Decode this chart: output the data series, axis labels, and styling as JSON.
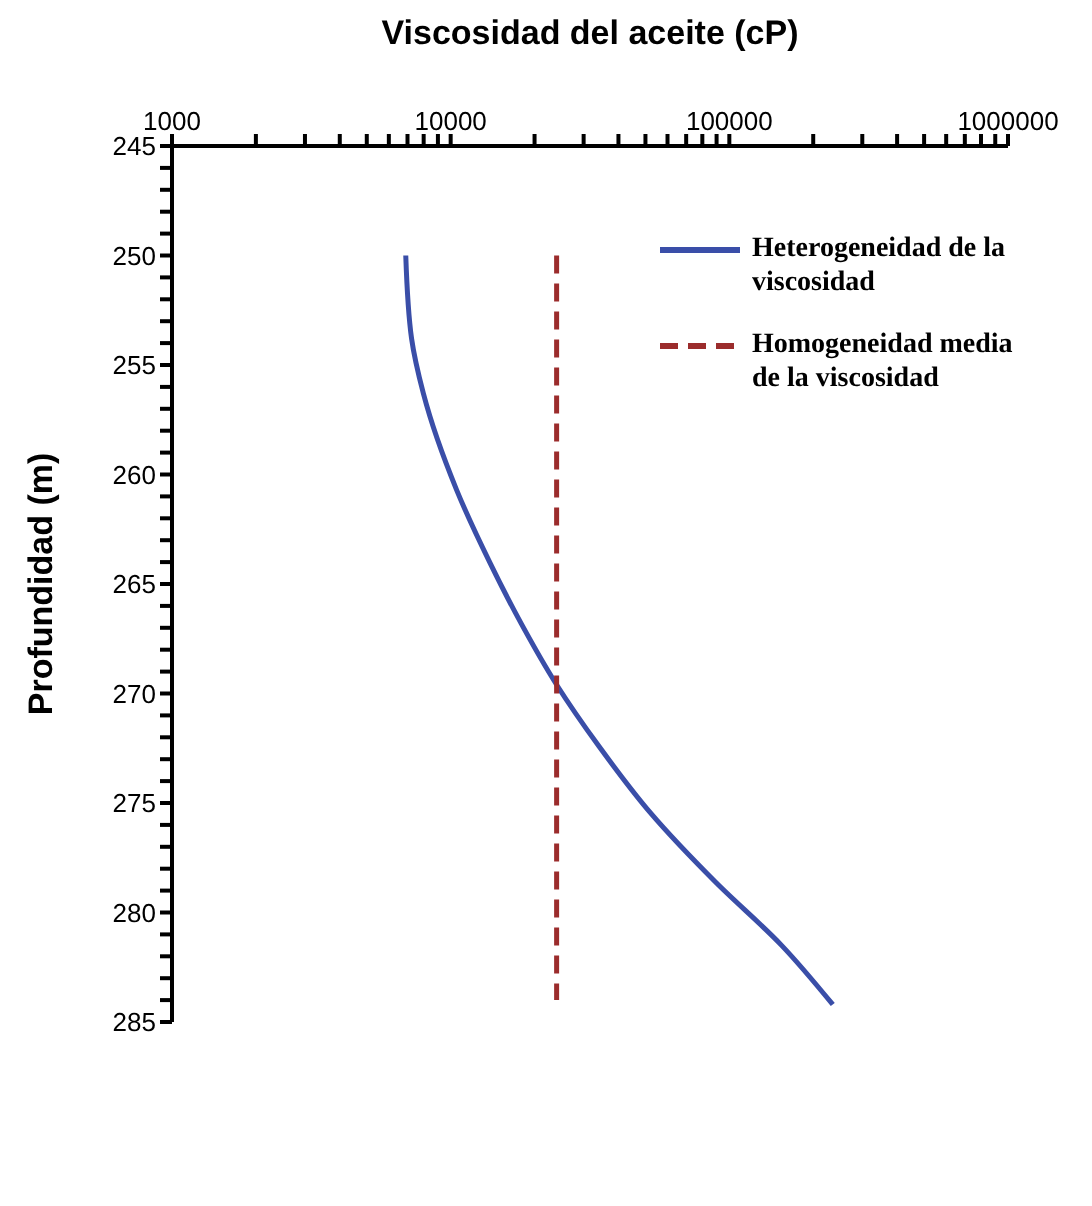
{
  "chart_data": {
    "type": "line",
    "xlabel": "Viscosidad del aceite (cP)",
    "ylabel": "Profundidad (m)",
    "series": [
      {
        "name": "Heterogeneidad de la viscosidad",
        "color": "#3a4ea8",
        "line_style": "solid",
        "x": [
          6900,
          7240,
          7980,
          10500,
          13800,
          17900,
          24000,
          34000,
          52500,
          89000,
          154000,
          235000
        ],
        "values": [
          250,
          253.8,
          256.3,
          260.7,
          264.0,
          266.8,
          269.6,
          272.4,
          275.5,
          278.6,
          281.5,
          284.2
        ]
      },
      {
        "name": "Homogeneidad media de la viscosidad",
        "color": "#9b2c2c",
        "line_style": "dashed",
        "x": [
          24000,
          24000
        ],
        "values": [
          250,
          284
        ]
      }
    ],
    "log": "x",
    "xlim": [
      1000,
      1000000
    ],
    "xticks": [
      1000,
      {
        "value": 2000,
        "label": null
      },
      {
        "value": 3000,
        "label": null
      },
      {
        "value": 4000,
        "label": null
      },
      {
        "value": 5000,
        "label": null
      },
      {
        "value": 6000,
        "label": null
      },
      {
        "value": 7000,
        "label": null
      },
      {
        "value": 8000,
        "label": null
      },
      {
        "value": 9000,
        "label": null
      },
      10000,
      {
        "value": 20000,
        "label": null
      },
      {
        "value": 30000,
        "label": null
      },
      {
        "value": 40000,
        "label": null
      },
      {
        "value": 50000,
        "label": null
      },
      {
        "value": 60000,
        "label": null
      },
      {
        "value": 70000,
        "label": null
      },
      {
        "value": 80000,
        "label": null
      },
      {
        "value": 90000,
        "label": null
      },
      100000,
      {
        "value": 200000,
        "label": null
      },
      {
        "value": 300000,
        "label": null
      },
      {
        "value": 400000,
        "label": null
      },
      {
        "value": 500000,
        "label": null
      },
      {
        "value": 600000,
        "label": null
      },
      {
        "value": 700000,
        "label": null
      },
      {
        "value": 800000,
        "label": null
      },
      {
        "value": 900000,
        "label": null
      },
      1000000
    ],
    "ylim": [
      285,
      245
    ],
    "yticks": [
      245,
      {
        "value": 246,
        "label": null
      },
      {
        "value": 247,
        "label": null
      },
      {
        "value": 248,
        "label": null
      },
      {
        "value": 249,
        "label": null
      },
      250,
      {
        "value": 251,
        "label": null
      },
      {
        "value": 252,
        "label": null
      },
      {
        "value": 253,
        "label": null
      },
      {
        "value": 254,
        "label": null
      },
      255,
      {
        "value": 256,
        "label": null
      },
      {
        "value": 257,
        "label": null
      },
      {
        "value": 258,
        "label": null
      },
      {
        "value": 259,
        "label": null
      },
      260,
      {
        "value": 261,
        "label": null
      },
      {
        "value": 262,
        "label": null
      },
      {
        "value": 263,
        "label": null
      },
      {
        "value": 264,
        "label": null
      },
      265,
      {
        "value": 266,
        "label": null
      },
      {
        "value": 267,
        "label": null
      },
      {
        "value": 268,
        "label": null
      },
      {
        "value": 269,
        "label": null
      },
      270,
      {
        "value": 271,
        "label": null
      },
      {
        "value": 272,
        "label": null
      },
      {
        "value": 273,
        "label": null
      },
      {
        "value": 274,
        "label": null
      },
      275,
      {
        "value": 276,
        "label": null
      },
      {
        "value": 277,
        "label": null
      },
      {
        "value": 278,
        "label": null
      },
      {
        "value": 279,
        "label": null
      },
      280,
      {
        "value": 281,
        "label": null
      },
      {
        "value": 282,
        "label": null
      },
      {
        "value": 283,
        "label": null
      },
      {
        "value": 284,
        "label": null
      },
      285
    ],
    "grid": false,
    "legend": "top right",
    "marker": "none"
  }
}
